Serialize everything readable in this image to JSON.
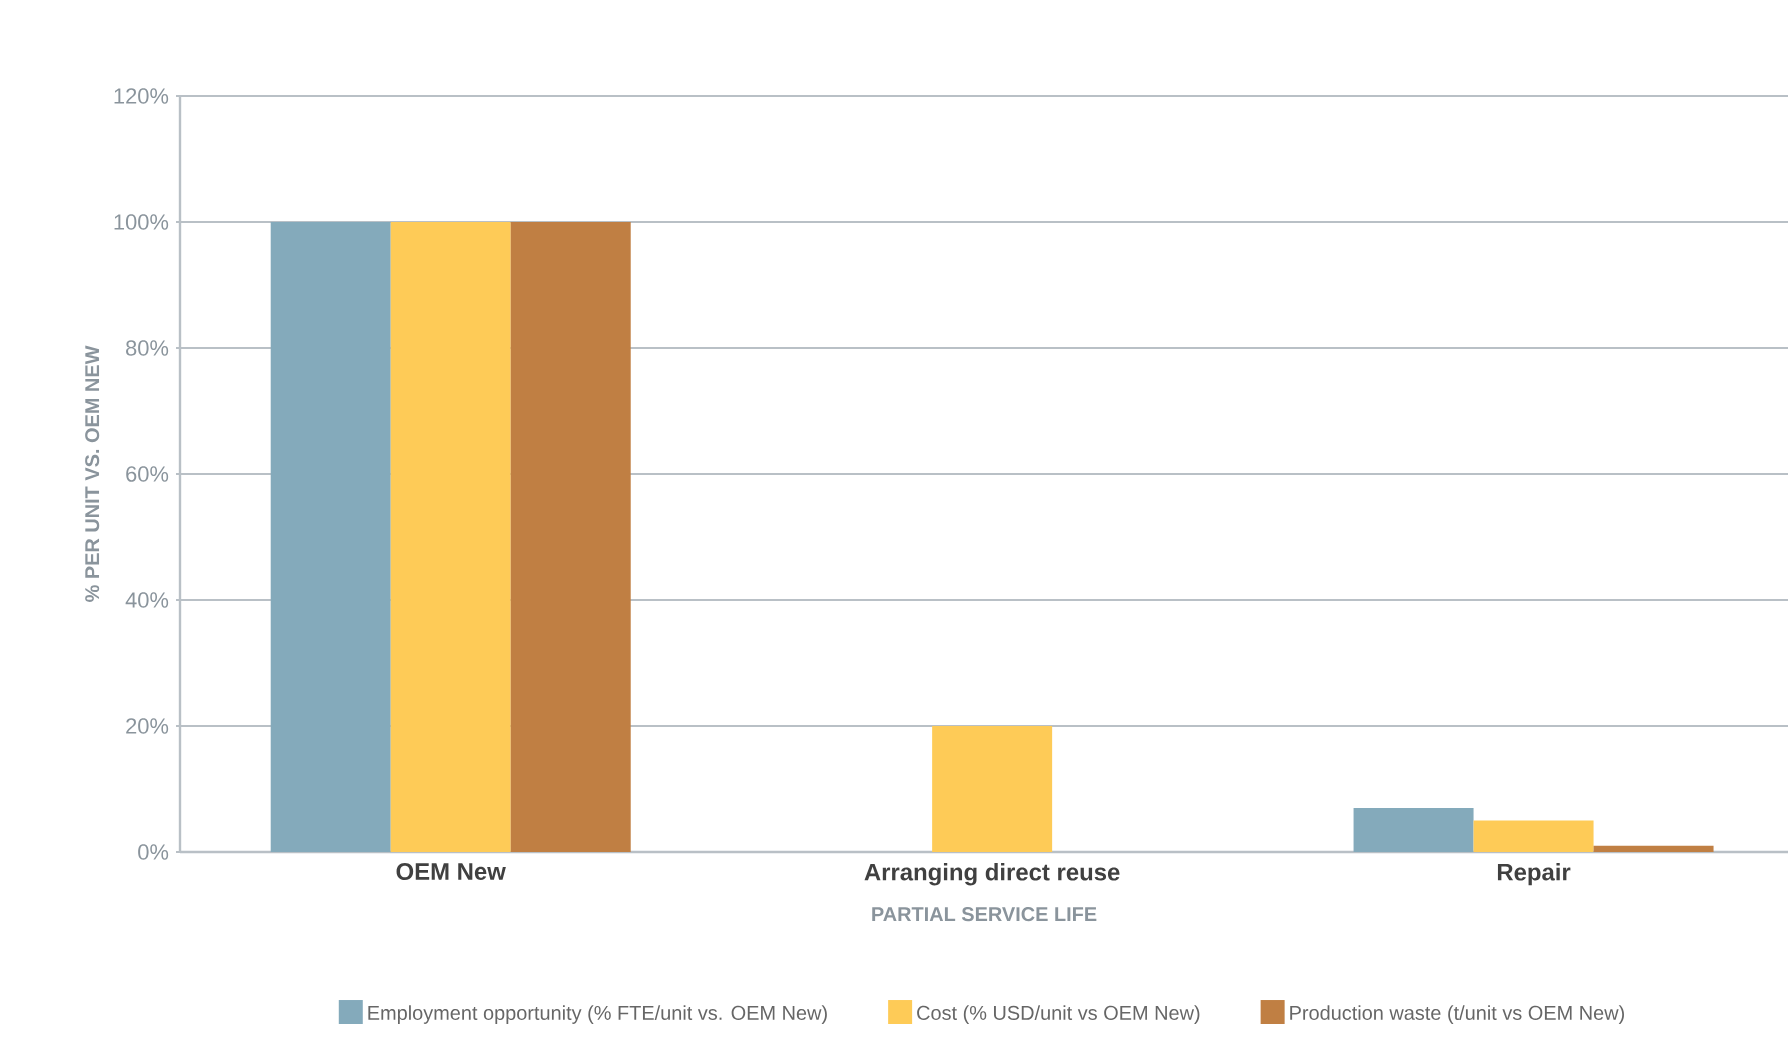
{
  "chart_data": {
    "type": "bar",
    "categories": [
      "OEM New",
      "Arranging direct reuse",
      "Repair"
    ],
    "xlabel": "PARTIAL SERVICE LIFE",
    "ylabel": "% PER UNIT VS. OEM NEW",
    "series": [
      {
        "name": "Employment opportunity (% FTE/unit vs. OEM New)",
        "color": "#84aabb",
        "values": [
          100,
          0,
          7
        ]
      },
      {
        "name": "Cost (% USD/unit vs OEM New)",
        "color": "#fecb57",
        "values": [
          100,
          20,
          5
        ]
      },
      {
        "name": "Production waste (t/unit vs OEM New)",
        "color": "#c07f43",
        "values": [
          100,
          0,
          1
        ]
      }
    ],
    "ylim": [
      0,
      120
    ],
    "yticks": [
      {
        "value": 0,
        "label": "0%"
      },
      {
        "value": 20,
        "label": "20%"
      },
      {
        "value": 40,
        "label": "40%"
      },
      {
        "value": 60,
        "label": "60%"
      },
      {
        "value": 80,
        "label": "80%"
      },
      {
        "value": 100,
        "label": "100%"
      },
      {
        "value": 120,
        "label": "120%"
      }
    ],
    "grid": "y",
    "legend": "bottom"
  }
}
